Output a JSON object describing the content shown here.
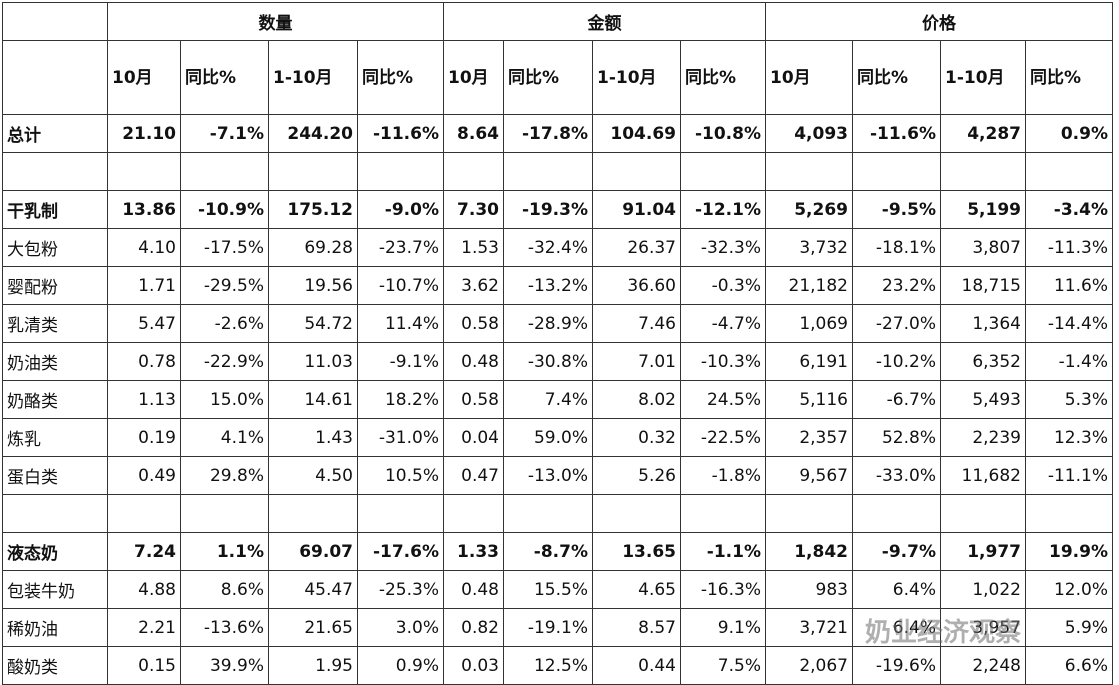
{
  "table": {
    "groups": [
      "数量",
      "金额",
      "价格"
    ],
    "subheaders": [
      "10月",
      "同比%",
      "1-10月",
      "同比%",
      "10月",
      "同比%",
      "1-10月",
      "同比%",
      "10月",
      "同比%",
      "1-10月",
      "同比%"
    ],
    "sections": [
      {
        "rows": [
          [
            "总计",
            "21.10",
            "-7.1%",
            "244.20",
            "-11.6%",
            "8.64",
            "-17.8%",
            "104.69",
            "-10.8%",
            "4,093",
            "-11.6%",
            "4,287",
            "0.9%"
          ]
        ]
      },
      {
        "rows": [
          [
            "干乳制",
            "13.86",
            "-10.9%",
            "175.12",
            "-9.0%",
            "7.30",
            "-19.3%",
            "91.04",
            "-12.1%",
            "5,269",
            "-9.5%",
            "5,199",
            "-3.4%"
          ],
          [
            "大包粉",
            "4.10",
            "-17.5%",
            "69.28",
            "-23.7%",
            "1.53",
            "-32.4%",
            "26.37",
            "-32.3%",
            "3,732",
            "-18.1%",
            "3,807",
            "-11.3%"
          ],
          [
            "婴配粉",
            "1.71",
            "-29.5%",
            "19.56",
            "-10.7%",
            "3.62",
            "-13.2%",
            "36.60",
            "-0.3%",
            "21,182",
            "23.2%",
            "18,715",
            "11.6%"
          ],
          [
            "乳清类",
            "5.47",
            "-2.6%",
            "54.72",
            "11.4%",
            "0.58",
            "-28.9%",
            "7.46",
            "-4.7%",
            "1,069",
            "-27.0%",
            "1,364",
            "-14.4%"
          ],
          [
            "奶油类",
            "0.78",
            "-22.9%",
            "11.03",
            "-9.1%",
            "0.48",
            "-30.8%",
            "7.01",
            "-10.3%",
            "6,191",
            "-10.2%",
            "6,352",
            "-1.4%"
          ],
          [
            "奶酪类",
            "1.13",
            "15.0%",
            "14.61",
            "18.2%",
            "0.58",
            "7.4%",
            "8.02",
            "24.5%",
            "5,116",
            "-6.7%",
            "5,493",
            "5.3%"
          ],
          [
            "炼乳",
            "0.19",
            "4.1%",
            "1.43",
            "-31.0%",
            "0.04",
            "59.0%",
            "0.32",
            "-22.5%",
            "2,357",
            "52.8%",
            "2,239",
            "12.3%"
          ],
          [
            "蛋白类",
            "0.49",
            "29.8%",
            "4.50",
            "10.5%",
            "0.47",
            "-13.0%",
            "5.26",
            "-1.8%",
            "9,567",
            "-33.0%",
            "11,682",
            "-11.1%"
          ]
        ]
      },
      {
        "rows": [
          [
            "液态奶",
            "7.24",
            "1.1%",
            "69.07",
            "-17.6%",
            "1.33",
            "-8.7%",
            "13.65",
            "-1.1%",
            "1,842",
            "-9.7%",
            "1,977",
            "19.9%"
          ],
          [
            "包装牛奶",
            "4.88",
            "8.6%",
            "45.47",
            "-25.3%",
            "0.48",
            "15.5%",
            "4.65",
            "-16.3%",
            "983",
            "6.4%",
            "1,022",
            "12.0%"
          ],
          [
            "稀奶油",
            "2.21",
            "-13.6%",
            "21.65",
            "3.0%",
            "0.82",
            "-19.1%",
            "8.57",
            "9.1%",
            "3,721",
            "6.4%",
            "3,957",
            "5.9%"
          ],
          [
            "酸奶类",
            "0.15",
            "39.9%",
            "1.95",
            "0.9%",
            "0.03",
            "12.5%",
            "0.44",
            "7.5%",
            "2,067",
            "-19.6%",
            "2,248",
            "6.6%"
          ]
        ]
      }
    ]
  },
  "watermark": "奶业经济观察"
}
